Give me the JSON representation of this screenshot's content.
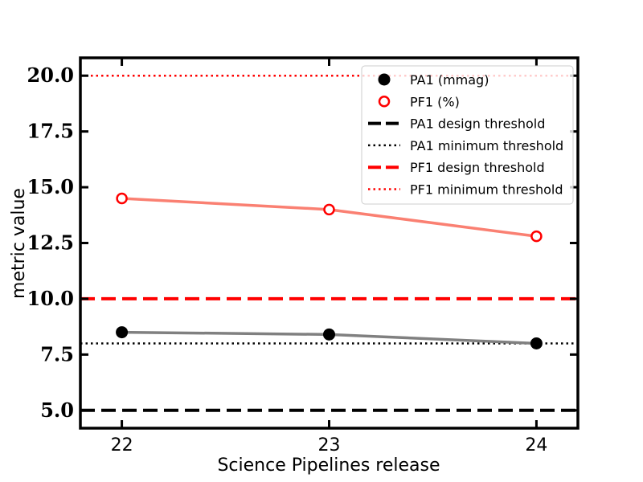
{
  "chart_data": {
    "type": "line",
    "title": "",
    "xlabel": "Science Pipelines release",
    "ylabel": "metric value",
    "x": [
      22,
      23,
      24
    ],
    "xlim": [
      21.8,
      24.2
    ],
    "ylim": [
      4.2,
      20.8
    ],
    "xticks": [
      "22",
      "23",
      "24"
    ],
    "yticks": [
      "5.0",
      "7.5",
      "10.0",
      "12.5",
      "15.0",
      "17.5",
      "20.0"
    ],
    "grid": false,
    "legend_position": "top-right",
    "series": [
      {
        "name": "PA1 (mmag)",
        "values": [
          8.5,
          8.4,
          8.0
        ],
        "line_color": "#808080",
        "marker_color": "#000000",
        "marker": "filled-circle"
      },
      {
        "name": "PF1 (%)",
        "values": [
          14.5,
          14.0,
          12.8
        ],
        "line_color": "#fa8072",
        "marker_color": "#ff0000",
        "marker": "open-circle"
      }
    ],
    "thresholds": [
      {
        "name": "PA1 design threshold",
        "value": 5.0,
        "color": "#000000",
        "style": "dashed"
      },
      {
        "name": "PA1 minimum threshold",
        "value": 8.0,
        "color": "#000000",
        "style": "dotted"
      },
      {
        "name": "PF1 design threshold",
        "value": 10.0,
        "color": "#ff0000",
        "style": "dashed"
      },
      {
        "name": "PF1 minimum threshold",
        "value": 20.0,
        "color": "#ff0000",
        "style": "dotted"
      }
    ]
  }
}
